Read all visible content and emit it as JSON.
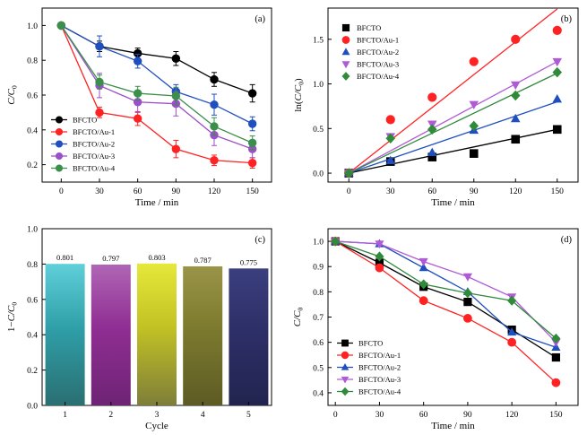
{
  "chart_data": [
    {
      "panel_label": "(a)",
      "type": "line",
      "xlabel": "Time / min",
      "ylabel": "C/C",
      "ylabel_sub": "0",
      "x": [
        0,
        30,
        60,
        90,
        120,
        150
      ],
      "xlim": [
        -15,
        165
      ],
      "ylim": [
        0.1,
        1.1
      ],
      "xticks": [
        "0",
        "30",
        "60",
        "90",
        "120",
        "150"
      ],
      "yticks": [
        "0.2",
        "0.4",
        "0.6",
        "0.8",
        "1.0"
      ],
      "ytick_values": [
        0.2,
        0.4,
        0.6,
        0.8,
        1.0
      ],
      "legend_position": "bottom-left",
      "series": [
        {
          "name": "BFCTO",
          "color": "#000000",
          "marker": "circle",
          "values": [
            1.0,
            0.88,
            0.84,
            0.81,
            0.69,
            0.61
          ],
          "errors": [
            0,
            0.03,
            0.03,
            0.04,
            0.04,
            0.05
          ]
        },
        {
          "name": "BFCTO/Au-1",
          "color": "#ff2222",
          "marker": "circle",
          "values": [
            1.0,
            0.5,
            0.465,
            0.29,
            0.225,
            0.21
          ],
          "errors": [
            0,
            0.03,
            0.04,
            0.05,
            0.03,
            0.03
          ]
        },
        {
          "name": "BFCTO/Au-2",
          "color": "#1f4fbf",
          "marker": "circle",
          "values": [
            1.0,
            0.88,
            0.795,
            0.62,
            0.545,
            0.435
          ],
          "errors": [
            0,
            0.06,
            0.04,
            0.04,
            0.06,
            0.04
          ]
        },
        {
          "name": "BFCTO/Au-3",
          "color": "#9b4fc8",
          "marker": "circle",
          "values": [
            1.0,
            0.655,
            0.56,
            0.55,
            0.37,
            0.29
          ],
          "errors": [
            0,
            0.07,
            0.06,
            0.07,
            0.06,
            0.05
          ]
        },
        {
          "name": "BFCTO/Au-4",
          "color": "#3a8f4a",
          "marker": "circle",
          "values": [
            1.0,
            0.675,
            0.61,
            0.595,
            0.42,
            0.325
          ],
          "errors": [
            0,
            0.04,
            0.04,
            0.05,
            0.05,
            0.04
          ]
        }
      ]
    },
    {
      "panel_label": "(b)",
      "type": "scatter",
      "xlabel": "Time / min",
      "ylabel": "ln(C/C)",
      "ylabel_sub": "0",
      "x": [
        0,
        30,
        60,
        90,
        120,
        150
      ],
      "xlim": [
        -15,
        165
      ],
      "ylim": [
        -0.1,
        1.85
      ],
      "xticks": [
        "0",
        "30",
        "60",
        "90",
        "120",
        "150"
      ],
      "yticks": [
        "0.0",
        "0.5",
        "1.0",
        "1.5"
      ],
      "ytick_values": [
        0.0,
        0.5,
        1.0,
        1.5
      ],
      "legend_position": "top-left",
      "series": [
        {
          "name": "BFCTO",
          "color": "#000000",
          "marker": "square",
          "values": [
            0.0,
            0.13,
            0.18,
            0.22,
            0.38,
            0.49
          ],
          "fit_end": 0.49
        },
        {
          "name": "BFCTO/Au-1",
          "color": "#ff2222",
          "marker": "circle",
          "values": [
            0.0,
            0.6,
            0.85,
            1.25,
            1.5,
            1.6
          ],
          "fit_end": 1.84
        },
        {
          "name": "BFCTO/Au-2",
          "color": "#1f4fbf",
          "marker": "triangle-up",
          "values": [
            0.0,
            0.14,
            0.23,
            0.48,
            0.61,
            0.83
          ],
          "fit_end": 0.8
        },
        {
          "name": "BFCTO/Au-3",
          "color": "#b05bd6",
          "marker": "triangle-down",
          "values": [
            0.0,
            0.41,
            0.55,
            0.77,
            0.99,
            1.25
          ],
          "fit_end": 1.25
        },
        {
          "name": "BFCTO/Au-4",
          "color": "#2f8a3a",
          "marker": "diamond",
          "values": [
            0.0,
            0.39,
            0.49,
            0.53,
            0.87,
            1.13
          ],
          "fit_end": 1.12
        }
      ]
    },
    {
      "panel_label": "(c)",
      "type": "bar",
      "xlabel": "Cycle",
      "ylabel": "1−C/C",
      "ylabel_sub": "0",
      "categories": [
        "1",
        "2",
        "3",
        "4",
        "5"
      ],
      "values": [
        0.801,
        0.797,
        0.803,
        0.787,
        0.775
      ],
      "value_labels": [
        "0.801",
        "0.797",
        "0.803",
        "0.787",
        "0.775"
      ],
      "ylim": [
        0,
        1.0
      ],
      "yticks": [
        "0.0",
        "0.2",
        "0.4",
        "0.6",
        "0.8",
        "1.0"
      ],
      "ytick_values": [
        0,
        0.2,
        0.4,
        0.6,
        0.8,
        1.0
      ],
      "bar_colors": [
        [
          "#5fcfd9",
          "#2f9fa8",
          "#2a6f72"
        ],
        [
          "#b065b5",
          "#8f2e93",
          "#6e2474"
        ],
        [
          "#e6e83a",
          "#c2c224",
          "#7e7e3a"
        ],
        [
          "#9a9448",
          "#7c7a2e",
          "#5d5b24"
        ],
        [
          "#3c3f7e",
          "#2d2f68",
          "#22244f"
        ]
      ]
    },
    {
      "panel_label": "(d)",
      "type": "line",
      "xlabel": "Time / min",
      "ylabel": "C/C",
      "ylabel_sub": "0",
      "x": [
        0,
        30,
        60,
        90,
        120,
        150
      ],
      "xlim": [
        -5,
        165
      ],
      "ylim": [
        0.35,
        1.05
      ],
      "xticks": [
        "0",
        "30",
        "60",
        "90",
        "120",
        "150"
      ],
      "yticks": [
        "0.4",
        "0.5",
        "0.6",
        "0.7",
        "0.8",
        "0.9",
        "1.0"
      ],
      "ytick_values": [
        0.4,
        0.5,
        0.6,
        0.7,
        0.8,
        0.9,
        1.0
      ],
      "legend_position": "bottom-left",
      "series": [
        {
          "name": "BFCTO",
          "color": "#000000",
          "marker": "square",
          "values": [
            1.0,
            0.915,
            0.82,
            0.76,
            0.65,
            0.54
          ]
        },
        {
          "name": "BFCTO/Au-1",
          "color": "#ff2222",
          "marker": "circle",
          "values": [
            1.0,
            0.895,
            0.765,
            0.695,
            0.6,
            0.44
          ]
        },
        {
          "name": "BFCTO/Au-2",
          "color": "#1f4fbf",
          "marker": "triangle-up",
          "values": [
            1.0,
            0.99,
            0.895,
            0.8,
            0.64,
            0.58
          ]
        },
        {
          "name": "BFCTO/Au-3",
          "color": "#b05bd6",
          "marker": "triangle-down",
          "values": [
            1.0,
            0.99,
            0.92,
            0.86,
            0.78,
            0.6
          ]
        },
        {
          "name": "BFCTO/Au-4",
          "color": "#2f8a3a",
          "marker": "diamond",
          "values": [
            1.0,
            0.94,
            0.83,
            0.795,
            0.765,
            0.615
          ]
        }
      ]
    }
  ]
}
